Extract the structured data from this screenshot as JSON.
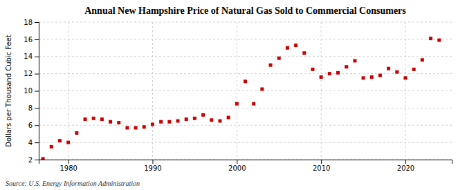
{
  "chart_data": {
    "type": "scatter",
    "title": "Annual New Hampshire Price of Natural Gas Sold to Commercial Consumers",
    "y_label": "Dollars per Thousand Cubic Feet",
    "annotations": [
      "Source: U.S. Energy Information Administration"
    ],
    "x": [
      1977,
      1978,
      1979,
      1980,
      1981,
      1982,
      1983,
      1984,
      1985,
      1986,
      1987,
      1988,
      1989,
      1990,
      1991,
      1992,
      1993,
      1994,
      1995,
      1996,
      1997,
      1998,
      1999,
      2000,
      2001,
      2002,
      2003,
      2004,
      2005,
      2006,
      2007,
      2008,
      2009,
      2010,
      2011,
      2012,
      2013,
      2014,
      2015,
      2016,
      2017,
      2018,
      2019,
      2020,
      2021,
      2022,
      2023,
      2024
    ],
    "values": [
      2.1,
      3.5,
      4.2,
      4.0,
      5.1,
      6.7,
      6.8,
      6.7,
      6.4,
      6.3,
      5.7,
      5.7,
      5.8,
      6.1,
      6.4,
      6.4,
      6.5,
      6.7,
      6.8,
      7.2,
      6.6,
      6.5,
      6.9,
      8.5,
      11.1,
      8.5,
      10.2,
      13.0,
      13.8,
      15.0,
      15.3,
      14.4,
      12.5,
      11.6,
      12.0,
      12.1,
      12.8,
      13.5,
      11.5,
      11.6,
      11.8,
      12.6,
      12.2,
      11.5,
      12.5,
      13.6,
      16.1,
      15.9
    ],
    "color": "#cc0000",
    "marker": "square",
    "xlim": [
      1976.5,
      2025.5
    ],
    "xticks": [
      1980,
      1990,
      2000,
      2010,
      2020
    ],
    "ylim": [
      2,
      18
    ],
    "yticks": [
      2,
      4,
      6,
      8,
      10,
      12,
      14,
      16,
      18
    ],
    "grid": true
  }
}
